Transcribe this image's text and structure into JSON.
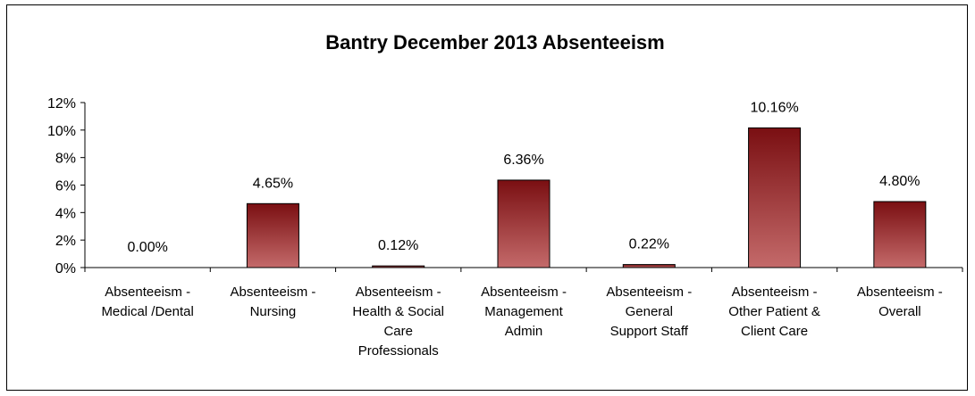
{
  "chart_data": {
    "type": "bar",
    "title": "Bantry December 2013 Absenteeism",
    "xlabel": "",
    "ylabel": "",
    "ylim": [
      0,
      12
    ],
    "y_ticks": [
      "0%",
      "2%",
      "4%",
      "6%",
      "8%",
      "10%",
      "12%"
    ],
    "grid": false,
    "legend": "none",
    "categories": [
      [
        "Absenteeism -",
        "Medical /Dental"
      ],
      [
        "Absenteeism -",
        "Nursing"
      ],
      [
        "Absenteeism -",
        "Health & Social",
        "Care",
        "Professionals"
      ],
      [
        "Absenteeism -",
        "Management",
        "Admin"
      ],
      [
        "Absenteeism -",
        "General",
        "Support Staff"
      ],
      [
        "Absenteeism -",
        "Other Patient &",
        "Client Care"
      ],
      [
        "Absenteeism -",
        "Overall"
      ]
    ],
    "values": [
      0.0,
      4.65,
      0.12,
      6.36,
      0.22,
      10.16,
      4.8
    ],
    "data_labels": [
      "0.00%",
      "4.65%",
      "0.12%",
      "6.36%",
      "0.22%",
      "10.16%",
      "4.80%"
    ]
  },
  "colors": {
    "bar_top": "#7a0f12",
    "bar_bottom": "#c46a6a",
    "bar_stroke": "#000000",
    "axis": "#000000",
    "text": "#000000",
    "background": "#ffffff"
  }
}
